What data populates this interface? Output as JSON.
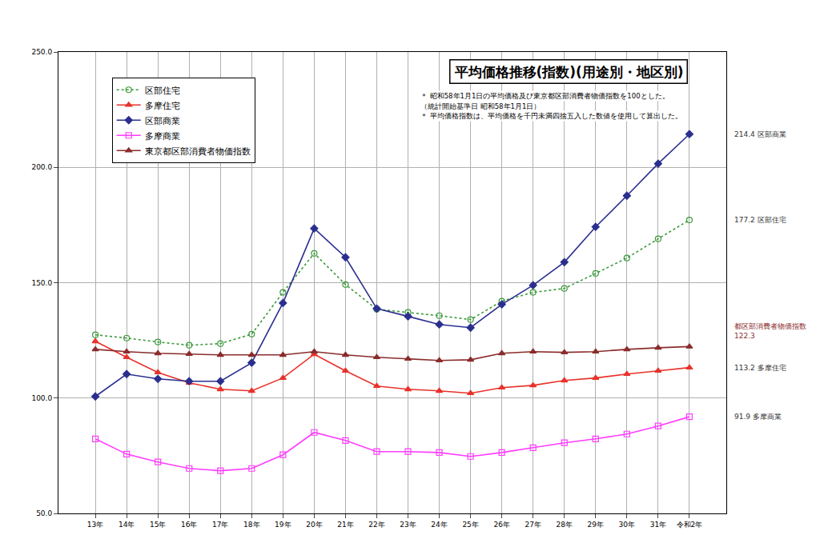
{
  "chart_data": {
    "type": "line",
    "title": "平均価格推移(指数)(用途別・地区別)",
    "notes": [
      "＊ 昭和58年1月1日の平均価格及び東京都区部消費者物価指数を100とした。",
      "（統計開始基準日 昭和58年1月1日）",
      "＊ 平均価格指数は、平均価格を千円未満四捨五入した数値を使用して算出した。"
    ],
    "categories": [
      "13年",
      "14年",
      "15年",
      "16年",
      "17年",
      "18年",
      "19年",
      "20年",
      "21年",
      "22年",
      "23年",
      "24年",
      "25年",
      "26年",
      "27年",
      "28年",
      "29年",
      "30年",
      "31年",
      "令和2年"
    ],
    "series": [
      {
        "name": "区部住宅",
        "color": "#3a9a3a",
        "marker": "circle-open",
        "line_style": "dot",
        "values": [
          127.4,
          126.0,
          124.3,
          122.9,
          123.6,
          127.7,
          145.8,
          162.7,
          149.2,
          138.5,
          137.1,
          135.7,
          134.0,
          142.0,
          145.8,
          147.5,
          154.0,
          160.7,
          169.0,
          177.2
        ]
      },
      {
        "name": "多摩住宅",
        "color": "#e8322a",
        "marker": "triangle-up",
        "line_style": "solid",
        "values": [
          124.6,
          117.7,
          111.1,
          106.6,
          103.8,
          103.1,
          108.7,
          119.0,
          111.8,
          105.2,
          103.8,
          103.1,
          102.1,
          104.5,
          105.5,
          107.6,
          108.7,
          110.4,
          111.8,
          113.2
        ]
      },
      {
        "name": "区部商業",
        "color": "#2a2f8f",
        "marker": "diamond",
        "line_style": "solid",
        "values": [
          100.7,
          110.4,
          108.3,
          107.3,
          107.3,
          115.3,
          141.2,
          173.5,
          161.0,
          138.8,
          135.4,
          131.9,
          130.5,
          140.6,
          148.9,
          158.9,
          174.2,
          187.7,
          201.6,
          214.4
        ]
      },
      {
        "name": "多摩商業",
        "color": "#ff3cff",
        "marker": "square-open",
        "line_style": "solid",
        "values": [
          82.3,
          75.7,
          72.3,
          69.5,
          68.5,
          69.5,
          75.4,
          85.1,
          81.6,
          76.8,
          76.8,
          76.4,
          74.7,
          76.4,
          78.5,
          80.6,
          82.3,
          84.4,
          87.9,
          91.9
        ]
      },
      {
        "name": "東京都区部消費者物価指数",
        "color": "#8b2c2c",
        "marker": "triangle-up",
        "line_style": "solid",
        "values": [
          121.1,
          120.1,
          119.4,
          119.1,
          118.7,
          118.7,
          118.7,
          120.1,
          118.7,
          117.7,
          117.0,
          116.3,
          116.6,
          119.4,
          120.1,
          119.8,
          120.1,
          121.1,
          121.8,
          122.3
        ]
      }
    ],
    "annotations": [
      {
        "series": "区部商業",
        "lines": [
          "214.4 区部商業"
        ]
      },
      {
        "series": "区部住宅",
        "lines": [
          "177.2 区部住宅"
        ]
      },
      {
        "series": "東京都区部消費者物価指数",
        "lines": [
          "都区部消費者物価指数",
          "122.3"
        ]
      },
      {
        "series": "多摩住宅",
        "lines": [
          "113.2 多摩住宅"
        ]
      },
      {
        "series": "多摩商業",
        "lines": [
          "91.9 多摩商業"
        ]
      }
    ],
    "ylim": [
      50,
      250
    ],
    "yticks": [
      {
        "value": 50,
        "label": "50.0"
      },
      {
        "value": 100,
        "label": "100.0"
      },
      {
        "value": 150,
        "label": "150.0"
      },
      {
        "value": 200,
        "label": "200.0"
      },
      {
        "value": 250,
        "label": "250.0"
      }
    ],
    "grid": true,
    "legend": "upper left"
  }
}
